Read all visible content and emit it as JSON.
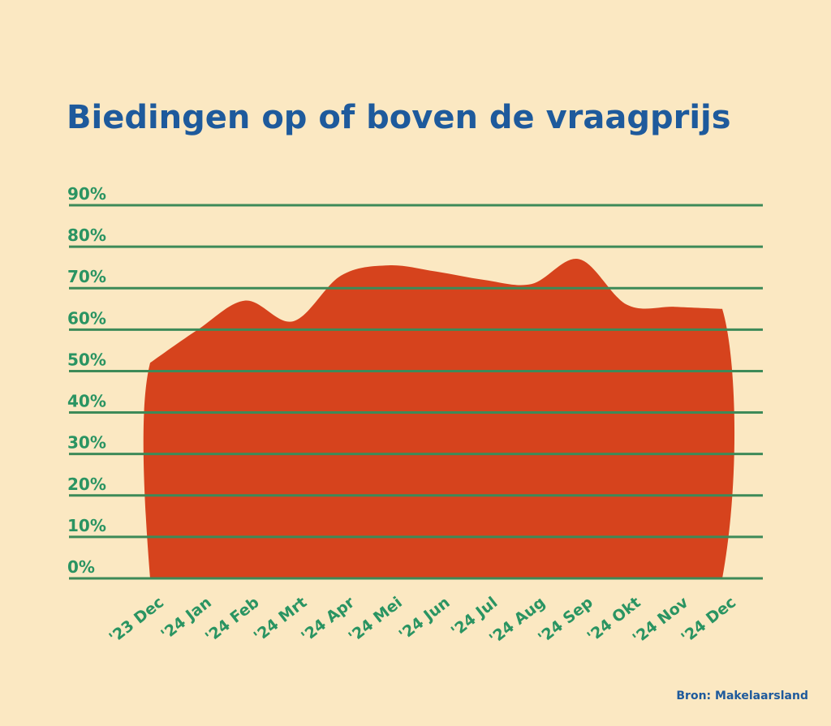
{
  "chart_data": {
    "type": "area",
    "title": "Biedingen op of boven de vraagprijs",
    "source": "Bron: Makelaarsland",
    "categories": [
      "'23 Dec",
      "'24 Jan",
      "'24 Feb",
      "'24 Mrt",
      "'24 Apr",
      "'24 Mei",
      "'24 Jun",
      "'24 Jul",
      "'24 Aug",
      "'24 Sep",
      "'24 Okt",
      "'24 Nov",
      "'24 Dec"
    ],
    "values": [
      52,
      60,
      67,
      62,
      73,
      75.5,
      74,
      72,
      71,
      77,
      66,
      65.5,
      65
    ],
    "color": "#d6431d",
    "ylim": [
      0,
      90
    ],
    "yticks": [
      {
        "value": 0,
        "label": "0%"
      },
      {
        "value": 10,
        "label": "10%"
      },
      {
        "value": 20,
        "label": "20%"
      },
      {
        "value": 30,
        "label": "30%"
      },
      {
        "value": 40,
        "label": "40%"
      },
      {
        "value": 50,
        "label": "50%"
      },
      {
        "value": 60,
        "label": "60%"
      },
      {
        "value": 70,
        "label": "70%"
      },
      {
        "value": 80,
        "label": "80%"
      },
      {
        "value": 90,
        "label": "90%"
      }
    ],
    "grid": true
  }
}
